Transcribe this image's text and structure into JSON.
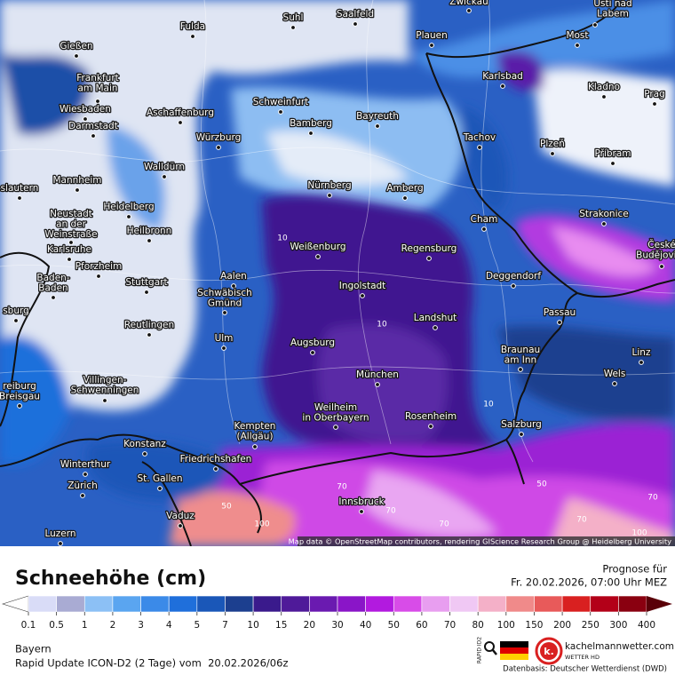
{
  "map": {
    "cities": [
      [
        "Gießen"
      ],
      [
        "Fulda"
      ],
      [
        "Suhl"
      ],
      [
        "Saalfeld"
      ],
      [
        "Zwickau"
      ],
      [
        "Ústí nad",
        "Labem"
      ],
      [
        "Plauen"
      ],
      [
        "Most"
      ],
      [
        "Frankfurt",
        "am Main"
      ],
      [
        "Karlsbad"
      ],
      [
        "Kladno"
      ],
      [
        "Prag"
      ],
      [
        "Wiesbaden"
      ],
      [
        "Aschaffenburg"
      ],
      [
        "Schweinfurt"
      ],
      [
        "Bamberg"
      ],
      [
        "Bayreuth"
      ],
      [
        "Darmstadt"
      ],
      [
        "Würzburg"
      ],
      [
        "Tachov"
      ],
      [
        "Plzeň"
      ],
      [
        "Příbram"
      ],
      [
        "Walldürn"
      ],
      [
        "Mannheim"
      ],
      [
        "Nürnberg"
      ],
      [
        "Amberg"
      ],
      [
        "slautern"
      ],
      [
        "Heidelberg"
      ],
      [
        "Neustadt",
        "an der",
        "Weinstraße"
      ],
      [
        "Cham"
      ],
      [
        "Strakonice"
      ],
      [
        "Heilbronn"
      ],
      [
        "Karlsruhe"
      ],
      [
        "Weißenburg"
      ],
      [
        "Regensburg"
      ],
      [
        "České",
        "Budějovice"
      ],
      [
        "Pforzheim"
      ],
      [
        "Aalen"
      ],
      [
        "Baden-",
        "Baden"
      ],
      [
        "Stuttgart"
      ],
      [
        "Deggendorf"
      ],
      [
        "Ingolstadt"
      ],
      [
        "Schwäbisch",
        "Gmünd"
      ],
      [
        "sburg"
      ],
      [
        "Passau"
      ],
      [
        "Landshut"
      ],
      [
        "Reutlingen"
      ],
      [
        "Ulm"
      ],
      [
        "Augsburg"
      ],
      [
        "Braunau",
        "am Inn"
      ],
      [
        "Linz"
      ],
      [
        "München"
      ],
      [
        "Wels"
      ],
      [
        "Villingen-",
        "Schwenningen"
      ],
      [
        "reiburg",
        "Breisgau"
      ],
      [
        "Weilheim",
        "in Oberbayern"
      ],
      [
        "Rosenheim"
      ],
      [
        "Kempten",
        "(Allgäu)"
      ],
      [
        "Salzburg"
      ],
      [
        "Konstanz"
      ],
      [
        "Friedrichshafen"
      ],
      [
        "Winterthur"
      ],
      [
        "St. Gallen"
      ],
      [
        "Zürich"
      ],
      [
        "Innsbruck"
      ],
      [
        "Vaduz"
      ],
      [
        "Luzern"
      ]
    ],
    "contour_labels": [
      10,
      10,
      10,
      50,
      70,
      70,
      100,
      70,
      100,
      70,
      50,
      70
    ],
    "attribution": "Map data © OpenStreetMap contributors, rendering GIScience Research Group @ Heidelberg University"
  },
  "legend": {
    "title": "Schneehöhe (cm)",
    "forecast_label": "Prognose für",
    "forecast_time": "Fr. 20.02.2026, 07:00 Uhr MEZ",
    "colorbar": {
      "ticks": [
        0.1,
        0.5,
        1,
        2,
        3,
        4,
        5,
        7,
        10,
        15,
        20,
        30,
        40,
        50,
        60,
        70,
        80,
        100,
        150,
        200,
        250,
        300,
        400
      ],
      "colors": [
        "#ffffff",
        "#d9dcf7",
        "#a9abd3",
        "#8cc0f5",
        "#5aa5f0",
        "#3b8ae8",
        "#1f6fdb",
        "#1a57b8",
        "#1c3f8f",
        "#3a1a8c",
        "#4f1a99",
        "#6a1ab0",
        "#8a15c8",
        "#b21adf",
        "#d84ce8",
        "#e89ef0",
        "#f0c8f4",
        "#f4b0c8",
        "#f08a8a",
        "#e85a5a",
        "#d92020",
        "#b30018",
        "#8a0010",
        "#5a0008"
      ]
    },
    "region": "Bayern",
    "model_run": "Rapid Update ICON-D2 (2 Tage) vom  20.02.2026/06z",
    "badge": "RAPID ID2",
    "site": "kachelmannwetter.com",
    "tagline": "WETTER HD",
    "logo_letter": "k.",
    "source": "Datenbasis: Deutscher Wetterdienst (DWD)"
  }
}
